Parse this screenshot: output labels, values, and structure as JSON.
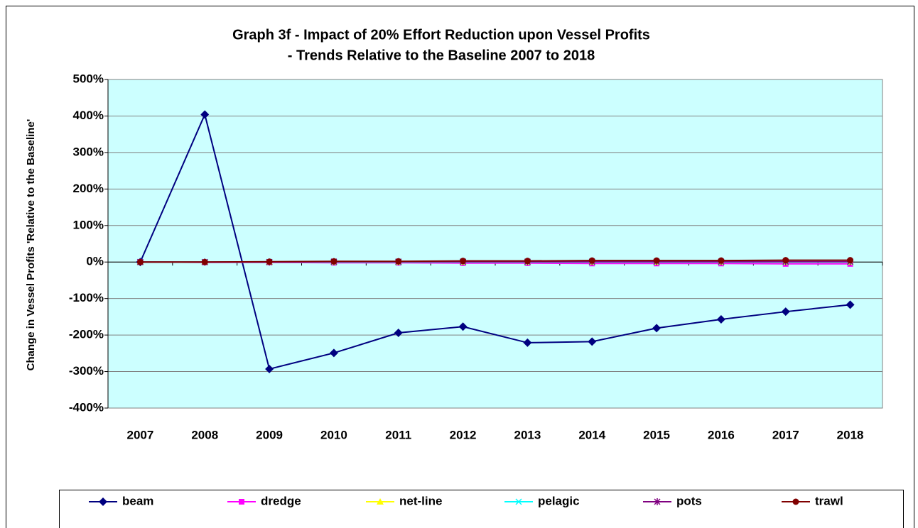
{
  "chart_data": {
    "type": "line",
    "title": [
      "Graph 3f - Impact of 20% Effort Reduction upon Vessel Profits",
      "- Trends Relative to the Baseline 2007 to 2018"
    ],
    "y_label": "Change in Vessel Profits 'Relative to the Baseline'",
    "categories": [
      "2007",
      "2008",
      "2009",
      "2010",
      "2011",
      "2012",
      "2013",
      "2014",
      "2015",
      "2016",
      "2017",
      "2018"
    ],
    "series": [
      {
        "name": "beam",
        "color": "#000080",
        "marker": "diamond",
        "values": [
          0,
          404,
          -293,
          -249,
          -194,
          -177,
          -221,
          -218,
          -181,
          -157,
          -136,
          -117
        ]
      },
      {
        "name": "dredge",
        "color": "#ff00ff",
        "marker": "square",
        "values": [
          0,
          -1,
          -1,
          -2,
          -2,
          -3,
          -3,
          -4,
          -4,
          -4,
          -5,
          -5
        ]
      },
      {
        "name": "net-line",
        "color": "#ffff00",
        "marker": "triangle",
        "values": [
          0,
          0,
          0,
          0,
          0,
          0,
          0,
          0,
          0,
          0,
          0,
          0
        ]
      },
      {
        "name": "pelagic",
        "color": "#00ffff",
        "marker": "x",
        "values": [
          0,
          0,
          0,
          0,
          0,
          0,
          0,
          0,
          0,
          0,
          0,
          0
        ]
      },
      {
        "name": "pots",
        "color": "#800080",
        "marker": "star",
        "values": [
          0,
          0,
          0,
          1,
          1,
          1,
          1,
          1,
          1,
          1,
          1,
          1
        ]
      },
      {
        "name": "trawl",
        "color": "#800000",
        "marker": "circle",
        "values": [
          0,
          0,
          1,
          2,
          2,
          3,
          3,
          4,
          4,
          4,
          5,
          5
        ]
      }
    ],
    "ylim": [
      -400,
      500
    ],
    "yticks": [
      {
        "value": -400,
        "label": "-400%"
      },
      {
        "value": -300,
        "label": "-300%"
      },
      {
        "value": -200,
        "label": "-200%"
      },
      {
        "value": -100,
        "label": "-100%"
      },
      {
        "value": 0,
        "label": "0%"
      },
      {
        "value": 100,
        "label": "100%"
      },
      {
        "value": 200,
        "label": "200%"
      },
      {
        "value": 300,
        "label": "300%"
      },
      {
        "value": 400,
        "label": "400%"
      },
      {
        "value": 500,
        "label": "500%"
      }
    ],
    "grid": true,
    "plot_background": "#ccffff",
    "legend": "bottom"
  }
}
